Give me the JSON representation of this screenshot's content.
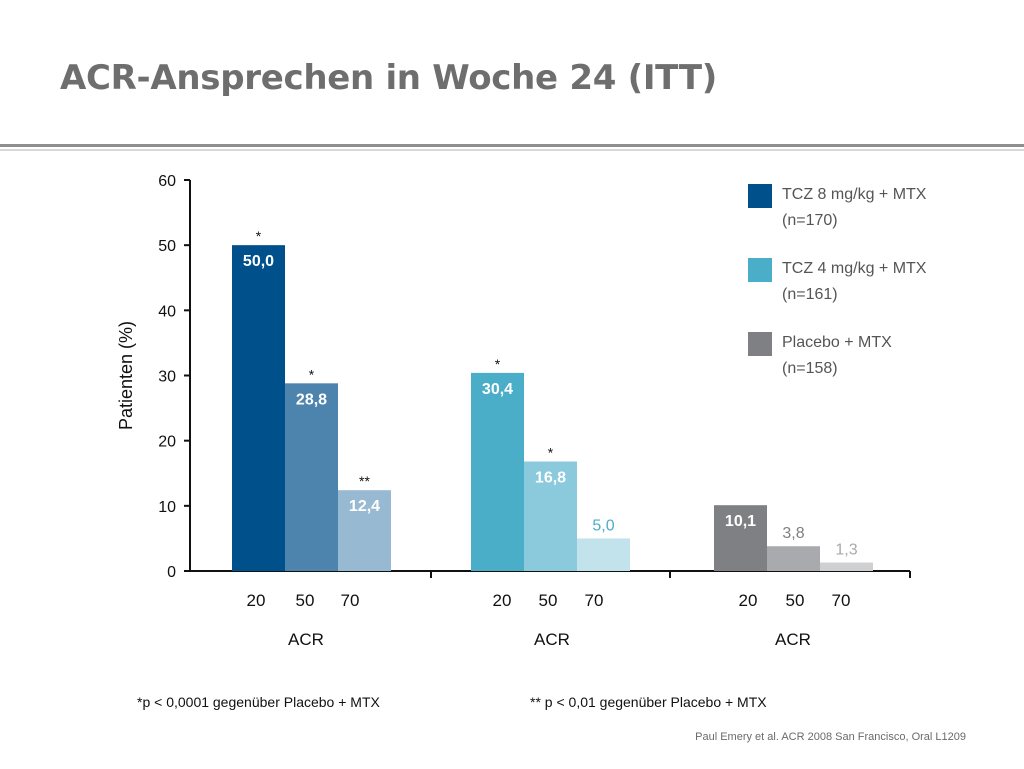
{
  "title": "ACR-Ansprechen in Woche 24 (ITT)",
  "footnotes": {
    "left": "*p < 0,0001 gegenüber Placebo + MTX",
    "right": "** p < 0,01 gegenüber Placebo + MTX"
  },
  "source": "Paul Emery et al. ACR 2008 San Francisco, Oral L1209",
  "legend": [
    {
      "name": "TCZ 8 mg/kg + MTX",
      "n": "(n=170)",
      "color": "#00508c"
    },
    {
      "name": "TCZ 4 mg/kg + MTX",
      "n": "(n=161)",
      "color": "#4aaec8"
    },
    {
      "name": "Placebo + MTX",
      "n": "(n=158)",
      "color": "#7f8084"
    }
  ],
  "chart_data": {
    "type": "bar",
    "ylabel": "Patienten (%)",
    "ylim": [
      0,
      60
    ],
    "yticks": [
      "0",
      "10",
      "20",
      "30",
      "40",
      "50",
      "60"
    ],
    "grid": false,
    "legend_position": "top-right",
    "groups": [
      {
        "series": "TCZ 8 mg/kg + MTX",
        "xlabel": "ACR",
        "categories": [
          "20",
          "50",
          "70"
        ],
        "values": [
          50.0,
          28.8,
          12.4
        ],
        "value_labels": [
          "50,0",
          "28,8",
          "12,4"
        ],
        "significance": [
          "*",
          "*",
          "**"
        ],
        "colors": [
          "#00508c",
          "#4d84ae",
          "#97b9d1"
        ],
        "label_colors": [
          "#ffffff",
          "#ffffff",
          "#ffffff"
        ]
      },
      {
        "series": "TCZ 4 mg/kg + MTX",
        "xlabel": "ACR",
        "categories": [
          "20",
          "50",
          "70"
        ],
        "values": [
          30.4,
          16.8,
          5.0
        ],
        "value_labels": [
          "30,4",
          "16,8",
          "5,0"
        ],
        "significance": [
          "*",
          "*",
          ""
        ],
        "colors": [
          "#4aaec8",
          "#8bc9dc",
          "#c3e3ec"
        ],
        "label_colors": [
          "#ffffff",
          "#ffffff",
          "#4aaec8"
        ]
      },
      {
        "series": "Placebo + MTX",
        "xlabel": "ACR",
        "categories": [
          "20",
          "50",
          "70"
        ],
        "values": [
          10.1,
          3.8,
          1.3
        ],
        "value_labels": [
          "10,1",
          "3,8",
          "1,3"
        ],
        "significance": [
          "",
          "",
          ""
        ],
        "colors": [
          "#7f8084",
          "#a9aaad",
          "#cfd0d2"
        ],
        "label_colors": [
          "#ffffff",
          "#7f8084",
          "#a9aaad"
        ]
      }
    ]
  }
}
